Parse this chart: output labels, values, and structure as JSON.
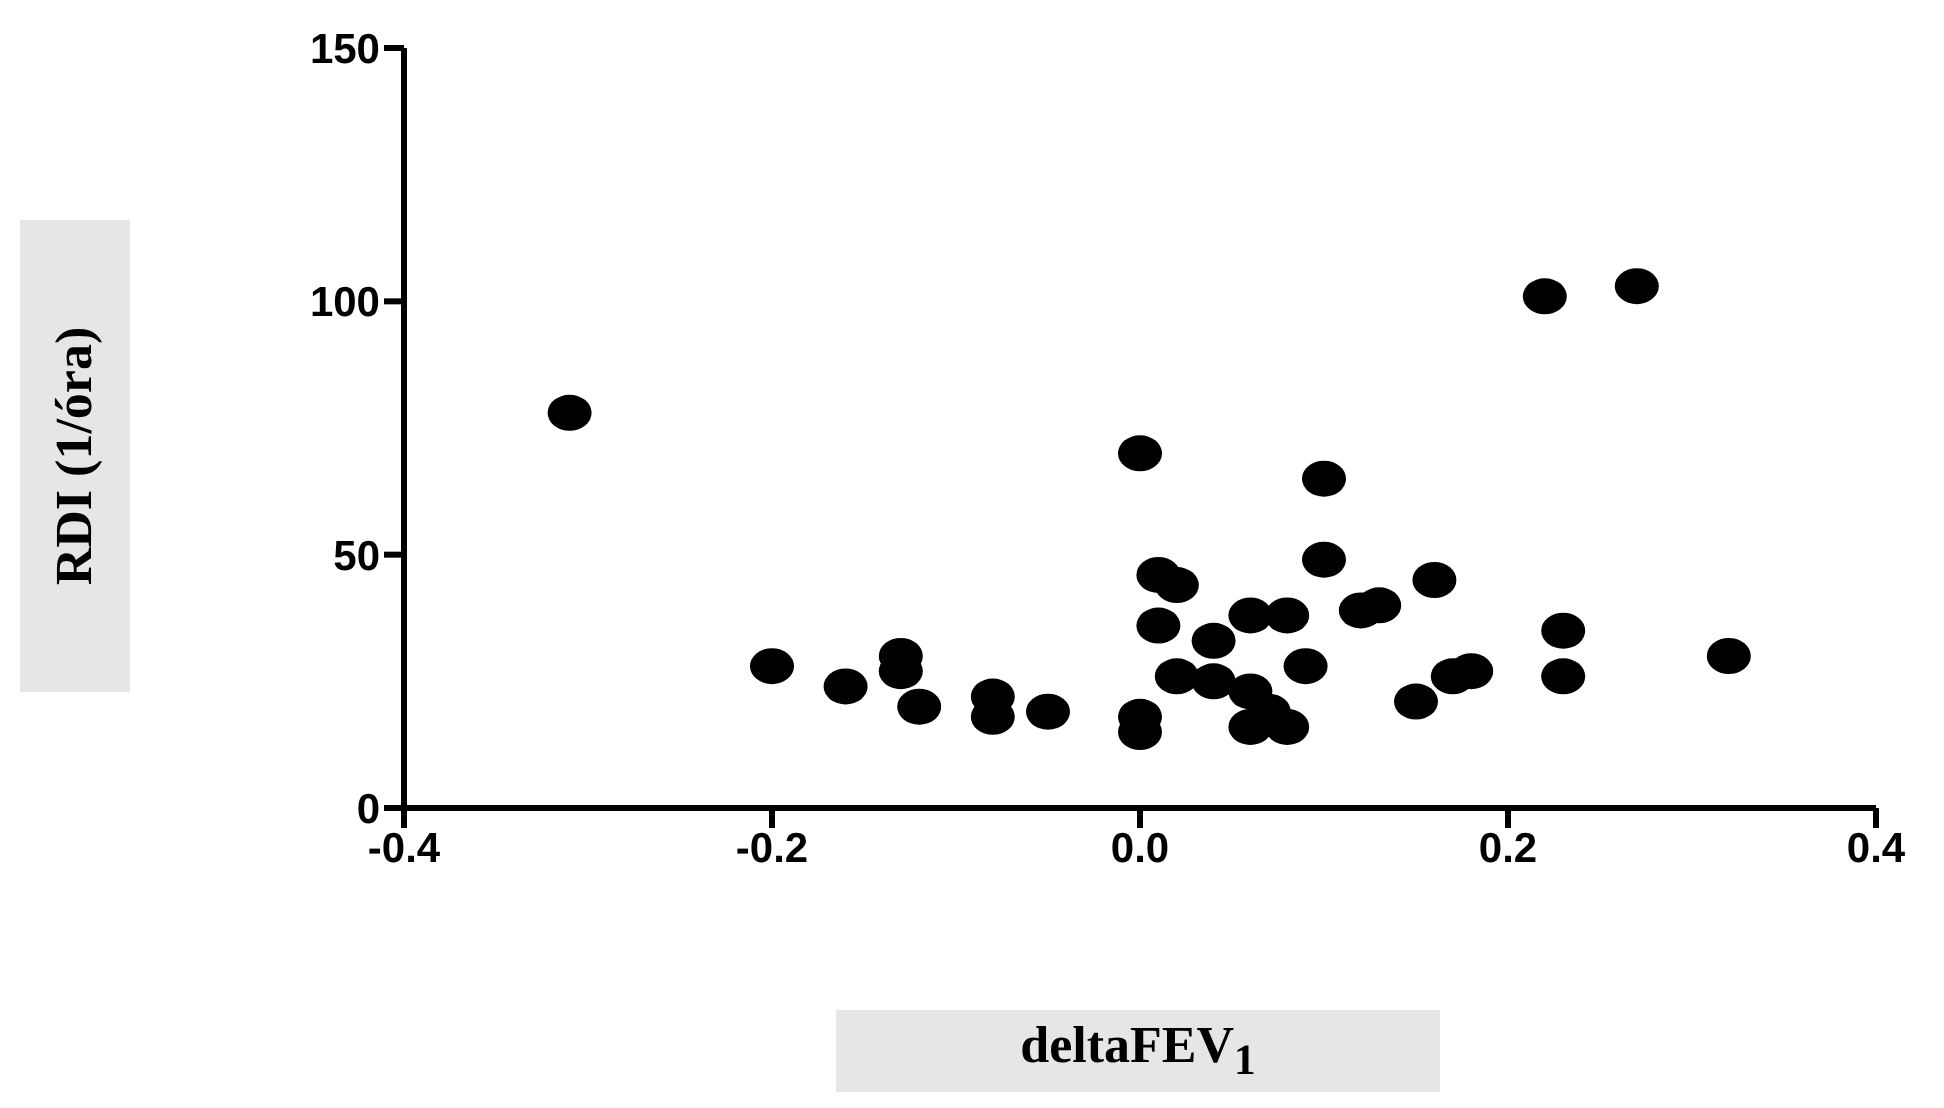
{
  "chart_data": {
    "type": "scatter",
    "xlabel": "deltaFEV$_{1}$",
    "ylabel": "RDI (1/óra)",
    "xlim": [
      -0.4,
      0.4
    ],
    "xticks": [
      -0.4,
      -0.2,
      {
        "value": 0,
        "label": "0.0"
      },
      0.2,
      0.4
    ],
    "ylim": [
      0,
      150
    ],
    "yticks": [
      0,
      50,
      100,
      150
    ],
    "grid": false,
    "legend": false,
    "marker": "circle",
    "series": [
      {
        "color": "#000000",
        "x": [
          -0.31,
          -0.2,
          -0.16,
          -0.13,
          -0.13,
          -0.12,
          -0.08,
          -0.08,
          -0.05,
          0.0,
          0.0,
          0.0,
          0.1,
          0.1,
          0.01,
          0.02,
          0.01,
          0.04,
          0.06,
          0.08,
          0.12,
          0.13,
          0.16,
          0.23,
          0.23,
          0.32,
          0.02,
          0.04,
          0.06,
          0.09,
          0.06,
          0.08,
          0.15,
          0.17,
          0.18,
          0.07,
          0.22,
          0.27
        ],
        "values": [
          78,
          28,
          24,
          30,
          27,
          20,
          22,
          18,
          19,
          70,
          18,
          15,
          65,
          49,
          46,
          44,
          36,
          33,
          38,
          38,
          39,
          40,
          45,
          35,
          26,
          30,
          26,
          25,
          23,
          28,
          16,
          16,
          21,
          26,
          27,
          19,
          101,
          103
        ]
      }
    ]
  }
}
